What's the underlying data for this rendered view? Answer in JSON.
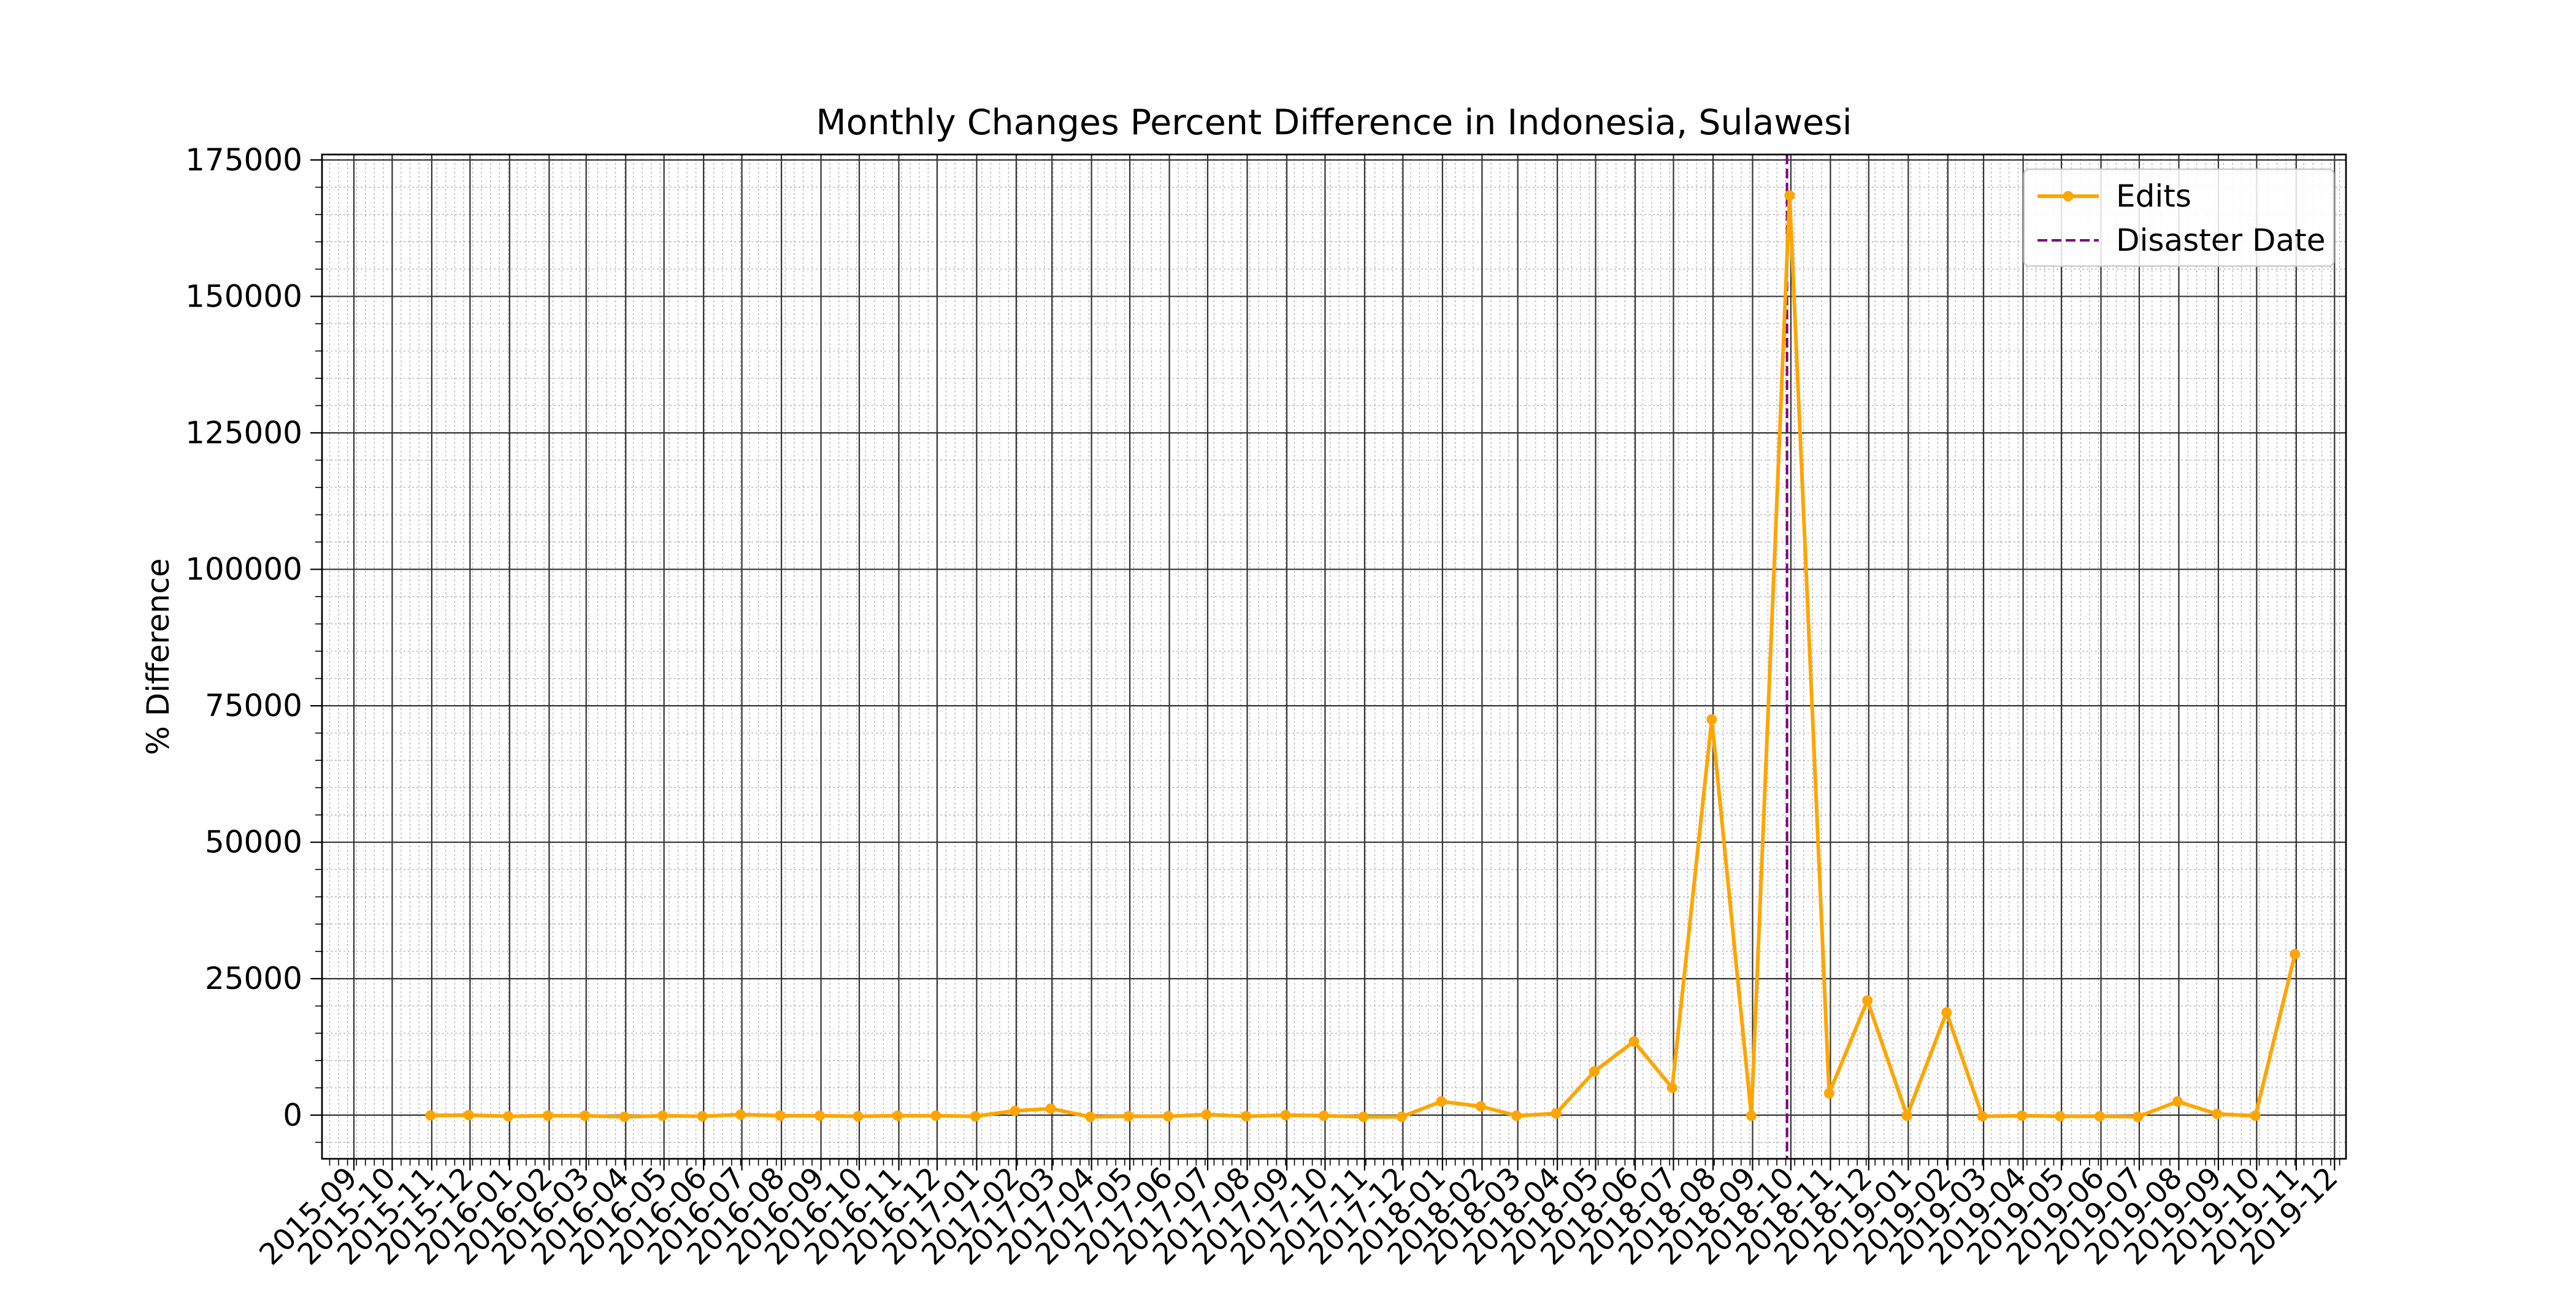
{
  "chart_data": {
    "type": "line",
    "title": "Monthly Changes Percent Difference in Indonesia, Sulawesi",
    "xlabel": "",
    "ylabel": "% Difference",
    "ylim": [
      -8000,
      176000
    ],
    "xlim": [
      "2015-08-07",
      "2019-12-10"
    ],
    "grid": true,
    "legend_position": "top-right",
    "x_tick_labels": [
      "2015-09",
      "2015-10",
      "2015-11",
      "2015-12",
      "2016-01",
      "2016-02",
      "2016-03",
      "2016-04",
      "2016-05",
      "2016-06",
      "2016-07",
      "2016-08",
      "2016-09",
      "2016-10",
      "2016-11",
      "2016-12",
      "2017-01",
      "2017-02",
      "2017-03",
      "2017-04",
      "2017-05",
      "2017-06",
      "2017-07",
      "2017-08",
      "2017-09",
      "2017-10",
      "2017-11",
      "2017-12",
      "2018-01",
      "2018-02",
      "2018-03",
      "2018-04",
      "2018-05",
      "2018-06",
      "2018-07",
      "2018-08",
      "2018-09",
      "2018-10",
      "2018-11",
      "2018-12",
      "2019-01",
      "2019-02",
      "2019-03",
      "2019-04",
      "2019-05",
      "2019-06",
      "2019-07",
      "2019-08",
      "2019-09",
      "2019-10",
      "2019-11",
      "2019-12"
    ],
    "y_tick_labels": [
      "0",
      "25000",
      "50000",
      "75000",
      "100000",
      "125000",
      "150000",
      "175000"
    ],
    "y_tick_values": [
      0,
      25000,
      50000,
      75000,
      100000,
      125000,
      150000,
      175000
    ],
    "series": [
      {
        "name": "Edits",
        "color": "#FFA500",
        "x": [
          "2015-10-31",
          "2015-11-30",
          "2015-12-31",
          "2016-01-31",
          "2016-02-29",
          "2016-03-31",
          "2016-04-30",
          "2016-05-31",
          "2016-06-30",
          "2016-07-31",
          "2016-08-31",
          "2016-09-30",
          "2016-10-31",
          "2016-11-30",
          "2016-12-31",
          "2017-01-31",
          "2017-02-28",
          "2017-03-31",
          "2017-04-30",
          "2017-05-31",
          "2017-06-30",
          "2017-07-31",
          "2017-08-31",
          "2017-09-30",
          "2017-10-31",
          "2017-11-30",
          "2017-12-31",
          "2018-01-31",
          "2018-02-28",
          "2018-03-31",
          "2018-04-30",
          "2018-05-31",
          "2018-06-30",
          "2018-07-31",
          "2018-08-31",
          "2018-09-30",
          "2018-10-31",
          "2018-11-30",
          "2018-12-31",
          "2019-01-31",
          "2019-02-28",
          "2019-03-31",
          "2019-04-30",
          "2019-05-31",
          "2019-06-30",
          "2019-07-31",
          "2019-08-31",
          "2019-09-30",
          "2019-10-31"
        ],
        "values": [
          -50,
          0,
          -200,
          -100,
          -100,
          -300,
          -100,
          -200,
          100,
          -100,
          -100,
          -200,
          -100,
          -100,
          -200,
          800,
          1200,
          -300,
          -200,
          -200,
          100,
          -200,
          0,
          -100,
          -300,
          -300,
          2500,
          1600,
          -100,
          300,
          8000,
          13500,
          5000,
          72500,
          -100,
          168500,
          4000,
          21000,
          -100,
          18800,
          -200,
          -100,
          -200,
          -200,
          -300,
          2500,
          200,
          -100,
          29500
        ]
      }
    ],
    "reference_lines": [
      {
        "name": "Disaster Date",
        "x": "2018-09-28",
        "color": "#800080"
      }
    ]
  }
}
